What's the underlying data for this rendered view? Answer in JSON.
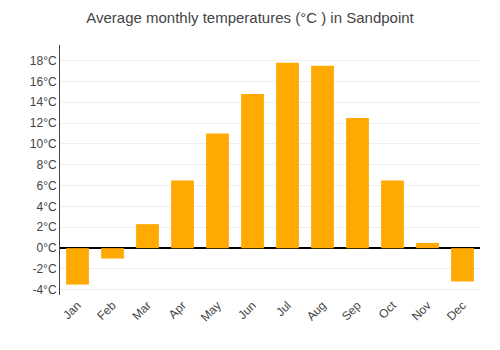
{
  "chart_data": {
    "type": "bar",
    "title": "Average monthly temperatures (°C ) in Sandpoint",
    "categories": [
      "Jan",
      "Feb",
      "Mar",
      "Apr",
      "May",
      "Jun",
      "Jul",
      "Aug",
      "Sep",
      "Oct",
      "Nov",
      "Dec"
    ],
    "values": [
      -3.5,
      -1.0,
      2.3,
      6.5,
      11.0,
      14.8,
      17.8,
      17.5,
      12.5,
      6.5,
      0.5,
      -3.2
    ],
    "color": "#FFAA00",
    "ylim": [
      -4.5,
      19.5
    ],
    "yticks": [
      {
        "value": -4,
        "label": "-4°C"
      },
      {
        "value": -2,
        "label": "-2°C"
      },
      {
        "value": 0,
        "label": "0°C"
      },
      {
        "value": 2,
        "label": "2°C"
      },
      {
        "value": 4,
        "label": "4°C"
      },
      {
        "value": 6,
        "label": "6°C"
      },
      {
        "value": 8,
        "label": "8°C"
      },
      {
        "value": 10,
        "label": "10°C"
      },
      {
        "value": 12,
        "label": "12°C"
      },
      {
        "value": 14,
        "label": "14°C"
      },
      {
        "value": 16,
        "label": "16°C"
      },
      {
        "value": 18,
        "label": "18°C"
      }
    ],
    "grid": true
  }
}
